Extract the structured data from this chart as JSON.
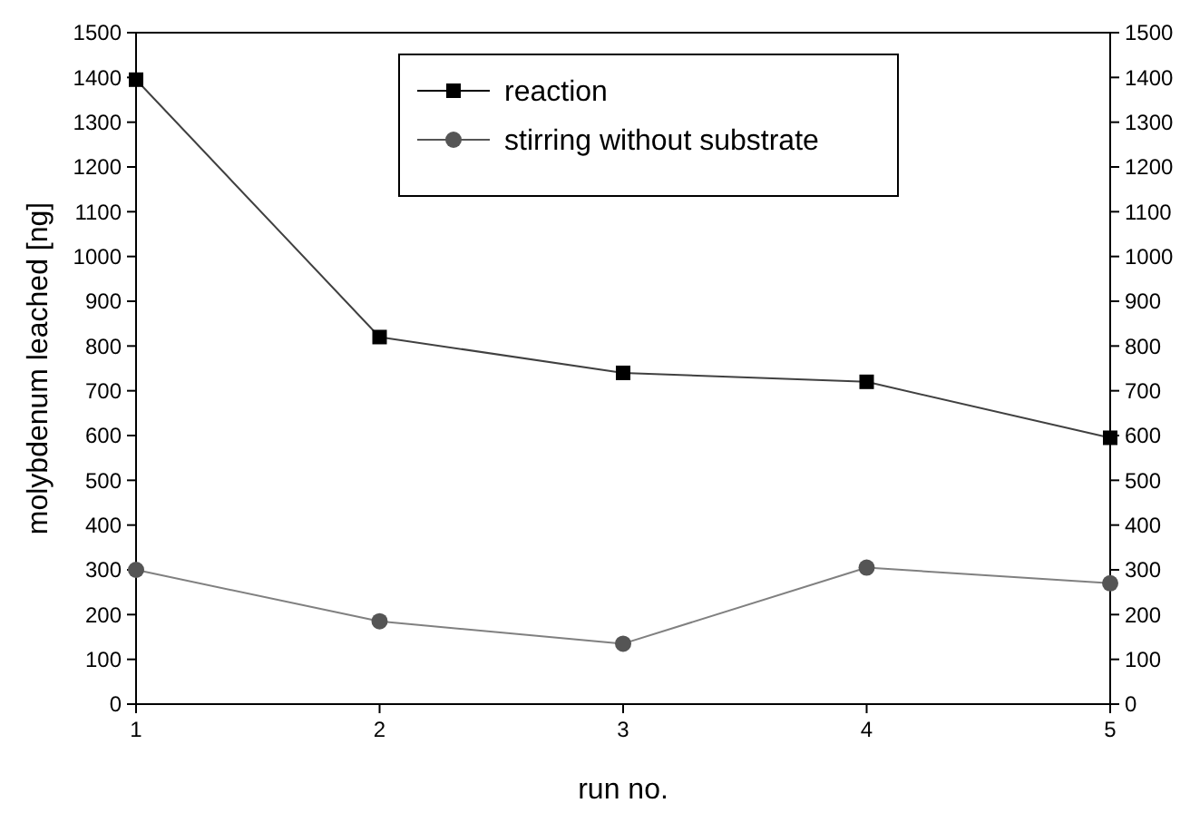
{
  "chart_data": {
    "type": "line",
    "xlabel": "run no.",
    "ylabel": "molybdenum leached [ng]",
    "x": [
      1,
      2,
      3,
      4,
      5
    ],
    "series": [
      {
        "name": "reaction",
        "color": "#000000",
        "marker": "square",
        "values": [
          1395,
          820,
          740,
          720,
          595
        ]
      },
      {
        "name": "stirring without substrate",
        "color": "#555555",
        "marker": "circle",
        "values": [
          300,
          185,
          135,
          305,
          270
        ]
      }
    ],
    "xlim": [
      1,
      5
    ],
    "xticks": [
      1,
      2,
      3,
      4,
      5
    ],
    "ylim": [
      0,
      1500
    ],
    "yticks": [
      0,
      100,
      200,
      300,
      400,
      500,
      600,
      700,
      800,
      900,
      1000,
      1100,
      1200,
      1300,
      1400,
      1500
    ],
    "y2lim": [
      0,
      1500
    ],
    "y2ticks": [
      0,
      100,
      200,
      300,
      400,
      500,
      600,
      700,
      800,
      900,
      1000,
      1100,
      1200,
      1300,
      1400,
      1500
    ],
    "legend": "top right",
    "line_style": "solid"
  }
}
